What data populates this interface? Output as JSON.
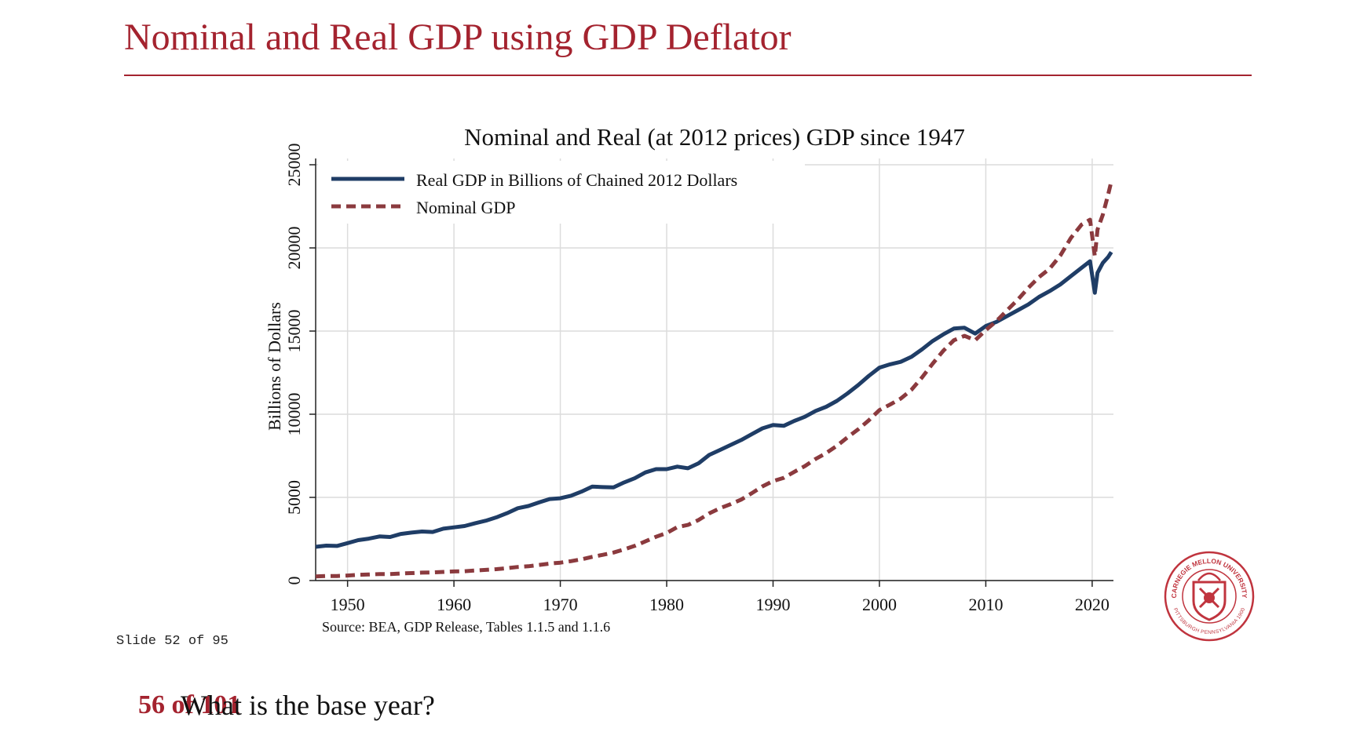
{
  "slide": {
    "title": "Nominal and Real GDP using GDP Deflator",
    "counter": "Slide 52 of 95",
    "page": "56 of 101",
    "question": "What is the base year?",
    "seal_text_top": "CARNEGIE MELLON UNIVERSITY",
    "seal_text_bottom": "PITTSBURGH PENNSYLVANIA 1900",
    "accent_color": "#a4232f"
  },
  "chart_data": {
    "type": "line",
    "title": "Nominal and Real (at 2012 prices) GDP since 1947",
    "xlabel": "",
    "ylabel": "Billions of Dollars",
    "note": "Source: BEA, GDP Release, Tables 1.1.5 and 1.1.6",
    "xlim": [
      1947,
      2022
    ],
    "ylim": [
      0,
      25000
    ],
    "x_ticks": [
      1950,
      1960,
      1970,
      1980,
      1990,
      2000,
      2010,
      2020
    ],
    "y_ticks": [
      0,
      5000,
      10000,
      15000,
      20000,
      25000
    ],
    "grid": true,
    "legend_position": "top-left",
    "series": [
      {
        "name": "Real GDP in Billions of Chained 2012 Dollars",
        "color": "#1f3d66",
        "style": "solid",
        "points": [
          [
            1947,
            2030
          ],
          [
            1948,
            2100
          ],
          [
            1949,
            2080
          ],
          [
            1950,
            2250
          ],
          [
            1951,
            2430
          ],
          [
            1952,
            2520
          ],
          [
            1953,
            2650
          ],
          [
            1954,
            2620
          ],
          [
            1955,
            2800
          ],
          [
            1956,
            2880
          ],
          [
            1957,
            2950
          ],
          [
            1958,
            2920
          ],
          [
            1959,
            3120
          ],
          [
            1960,
            3200
          ],
          [
            1961,
            3280
          ],
          [
            1962,
            3450
          ],
          [
            1963,
            3600
          ],
          [
            1964,
            3800
          ],
          [
            1965,
            4050
          ],
          [
            1966,
            4350
          ],
          [
            1967,
            4480
          ],
          [
            1968,
            4700
          ],
          [
            1969,
            4900
          ],
          [
            1970,
            4950
          ],
          [
            1971,
            5100
          ],
          [
            1972,
            5350
          ],
          [
            1973,
            5650
          ],
          [
            1974,
            5620
          ],
          [
            1975,
            5600
          ],
          [
            1976,
            5900
          ],
          [
            1977,
            6150
          ],
          [
            1978,
            6500
          ],
          [
            1979,
            6700
          ],
          [
            1980,
            6700
          ],
          [
            1981,
            6850
          ],
          [
            1982,
            6750
          ],
          [
            1983,
            7050
          ],
          [
            1984,
            7550
          ],
          [
            1985,
            7850
          ],
          [
            1986,
            8150
          ],
          [
            1987,
            8450
          ],
          [
            1988,
            8800
          ],
          [
            1989,
            9150
          ],
          [
            1990,
            9350
          ],
          [
            1991,
            9300
          ],
          [
            1992,
            9600
          ],
          [
            1993,
            9850
          ],
          [
            1994,
            10200
          ],
          [
            1995,
            10450
          ],
          [
            1996,
            10800
          ],
          [
            1997,
            11250
          ],
          [
            1998,
            11750
          ],
          [
            1999,
            12300
          ],
          [
            2000,
            12800
          ],
          [
            2001,
            13000
          ],
          [
            2002,
            13150
          ],
          [
            2003,
            13450
          ],
          [
            2004,
            13900
          ],
          [
            2005,
            14400
          ],
          [
            2006,
            14800
          ],
          [
            2007,
            15150
          ],
          [
            2008,
            15200
          ],
          [
            2009,
            14850
          ],
          [
            2010,
            15300
          ],
          [
            2011,
            15550
          ],
          [
            2012,
            15900
          ],
          [
            2013,
            16250
          ],
          [
            2014,
            16600
          ],
          [
            2015,
            17050
          ],
          [
            2016,
            17400
          ],
          [
            2017,
            17800
          ],
          [
            2018,
            18300
          ],
          [
            2019,
            18800
          ],
          [
            2019.8,
            19200
          ],
          [
            2020.25,
            17300
          ],
          [
            2020.5,
            18500
          ],
          [
            2021,
            19100
          ],
          [
            2021.5,
            19450
          ],
          [
            2021.8,
            19750
          ]
        ]
      },
      {
        "name": "Nominal GDP",
        "color": "#8b3a3e",
        "style": "dashed",
        "points": [
          [
            1947,
            245
          ],
          [
            1948,
            275
          ],
          [
            1949,
            275
          ],
          [
            1950,
            300
          ],
          [
            1951,
            345
          ],
          [
            1952,
            365
          ],
          [
            1953,
            390
          ],
          [
            1954,
            390
          ],
          [
            1955,
            425
          ],
          [
            1956,
            450
          ],
          [
            1957,
            475
          ],
          [
            1958,
            485
          ],
          [
            1959,
            520
          ],
          [
            1960,
            545
          ],
          [
            1961,
            560
          ],
          [
            1962,
            605
          ],
          [
            1963,
            640
          ],
          [
            1964,
            685
          ],
          [
            1965,
            745
          ],
          [
            1966,
            815
          ],
          [
            1967,
            860
          ],
          [
            1968,
            940
          ],
          [
            1969,
            1020
          ],
          [
            1970,
            1075
          ],
          [
            1971,
            1165
          ],
          [
            1972,
            1280
          ],
          [
            1973,
            1425
          ],
          [
            1974,
            1545
          ],
          [
            1975,
            1685
          ],
          [
            1976,
            1875
          ],
          [
            1977,
            2085
          ],
          [
            1978,
            2355
          ],
          [
            1979,
            2630
          ],
          [
            1980,
            2860
          ],
          [
            1981,
            3210
          ],
          [
            1982,
            3345
          ],
          [
            1983,
            3640
          ],
          [
            1984,
            4040
          ],
          [
            1985,
            4345
          ],
          [
            1986,
            4590
          ],
          [
            1987,
            4870
          ],
          [
            1988,
            5250
          ],
          [
            1989,
            5660
          ],
          [
            1990,
            5980
          ],
          [
            1991,
            6175
          ],
          [
            1992,
            6540
          ],
          [
            1993,
            6880
          ],
          [
            1994,
            7310
          ],
          [
            1995,
            7665
          ],
          [
            1996,
            8100
          ],
          [
            1997,
            8610
          ],
          [
            1998,
            9090
          ],
          [
            1999,
            9630
          ],
          [
            2000,
            10250
          ],
          [
            2001,
            10580
          ],
          [
            2002,
            10940
          ],
          [
            2003,
            11460
          ],
          [
            2004,
            12210
          ],
          [
            2005,
            13040
          ],
          [
            2006,
            13815
          ],
          [
            2007,
            14450
          ],
          [
            2008,
            14710
          ],
          [
            2009,
            14450
          ],
          [
            2010,
            15050
          ],
          [
            2011,
            15600
          ],
          [
            2012,
            16250
          ],
          [
            2013,
            16880
          ],
          [
            2014,
            17600
          ],
          [
            2015,
            18240
          ],
          [
            2016,
            18750
          ],
          [
            2017,
            19540
          ],
          [
            2018,
            20600
          ],
          [
            2019,
            21400
          ],
          [
            2019.8,
            21700
          ],
          [
            2020.25,
            19500
          ],
          [
            2020.5,
            21100
          ],
          [
            2021,
            22000
          ],
          [
            2021.5,
            23200
          ],
          [
            2021.8,
            24000
          ]
        ]
      }
    ]
  }
}
